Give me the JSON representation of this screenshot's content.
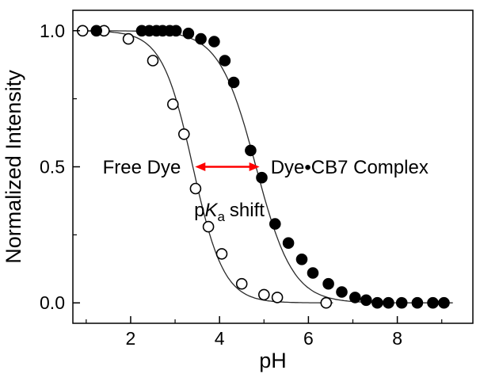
{
  "chart_data": {
    "type": "scatter",
    "title": "",
    "xlabel": "pH",
    "ylabel": "Normalized Intensity",
    "xlim": [
      0.7,
      9.7
    ],
    "ylim": [
      -0.075,
      1.075
    ],
    "xticks": [
      2,
      4,
      6,
      8
    ],
    "xticks_minor": [
      1,
      3,
      5,
      7,
      9
    ],
    "yticks": [
      0.0,
      0.5,
      1.0
    ],
    "ytick_labels": [
      "0.0",
      "0.5",
      "1.0"
    ],
    "yticks_minor": [
      0.25,
      0.75
    ],
    "grid": false,
    "legend": "none",
    "series": [
      {
        "name": "Free Dye",
        "marker": "open-circle",
        "points": [
          [
            0.92,
            1.0
          ],
          [
            1.4,
            1.0
          ],
          [
            1.95,
            0.97
          ],
          [
            2.5,
            0.89
          ],
          [
            2.95,
            0.73
          ],
          [
            3.2,
            0.62
          ],
          [
            3.46,
            0.42
          ],
          [
            3.75,
            0.28
          ],
          [
            4.05,
            0.18
          ],
          [
            4.5,
            0.07
          ],
          [
            5.0,
            0.03
          ],
          [
            5.3,
            0.02
          ],
          [
            6.4,
            0.0
          ]
        ],
        "fit": {
          "model": "sigmoid-decreasing",
          "pKa": 3.4,
          "hill": 1.25,
          "x_start": 0.75,
          "x_end": 6.55
        }
      },
      {
        "name": "Dye•CB7 Complex",
        "marker": "filled-circle",
        "points": [
          [
            1.23,
            1.0
          ],
          [
            2.25,
            1.0
          ],
          [
            2.42,
            1.0
          ],
          [
            2.58,
            1.0
          ],
          [
            2.72,
            1.0
          ],
          [
            2.88,
            1.0
          ],
          [
            3.02,
            1.0
          ],
          [
            3.3,
            0.99
          ],
          [
            3.58,
            0.97
          ],
          [
            3.88,
            0.96
          ],
          [
            4.12,
            0.89
          ],
          [
            4.32,
            0.81
          ],
          [
            4.7,
            0.56
          ],
          [
            4.95,
            0.46
          ],
          [
            5.25,
            0.29
          ],
          [
            5.55,
            0.22
          ],
          [
            5.85,
            0.16
          ],
          [
            6.1,
            0.11
          ],
          [
            6.45,
            0.07
          ],
          [
            6.75,
            0.04
          ],
          [
            7.05,
            0.02
          ],
          [
            7.3,
            0.01
          ],
          [
            7.55,
            0.0
          ],
          [
            7.8,
            0.0
          ],
          [
            8.1,
            0.0
          ],
          [
            8.45,
            0.0
          ],
          [
            8.8,
            0.0
          ],
          [
            9.05,
            0.0
          ]
        ],
        "fit": {
          "model": "sigmoid-decreasing",
          "pKa": 4.82,
          "hill": 1.05,
          "x_start": 1.05,
          "x_end": 9.25
        }
      }
    ],
    "annotations": {
      "free_dye_label": {
        "text": "Free Dye",
        "x": 2.25,
        "y": 0.475,
        "color": "#000000"
      },
      "complex_label": {
        "text": "Dye•CB7 Complex",
        "x": 5.15,
        "y": 0.475,
        "color": "#000000"
      },
      "pka_shift": {
        "prefix": "p",
        "k_italic": "K",
        "sub": "a",
        "rest": "shift",
        "x": 4.22,
        "y": 0.318,
        "color": "#ff0000"
      },
      "arrow": {
        "x1": 3.45,
        "x2": 4.9,
        "y": 0.5,
        "color": "#ff0000"
      }
    },
    "colors": {
      "axis": "#000000",
      "fit_line": "#2a2a2a",
      "marker": "#000000",
      "accent": "#ff0000",
      "background": "#ffffff"
    }
  }
}
